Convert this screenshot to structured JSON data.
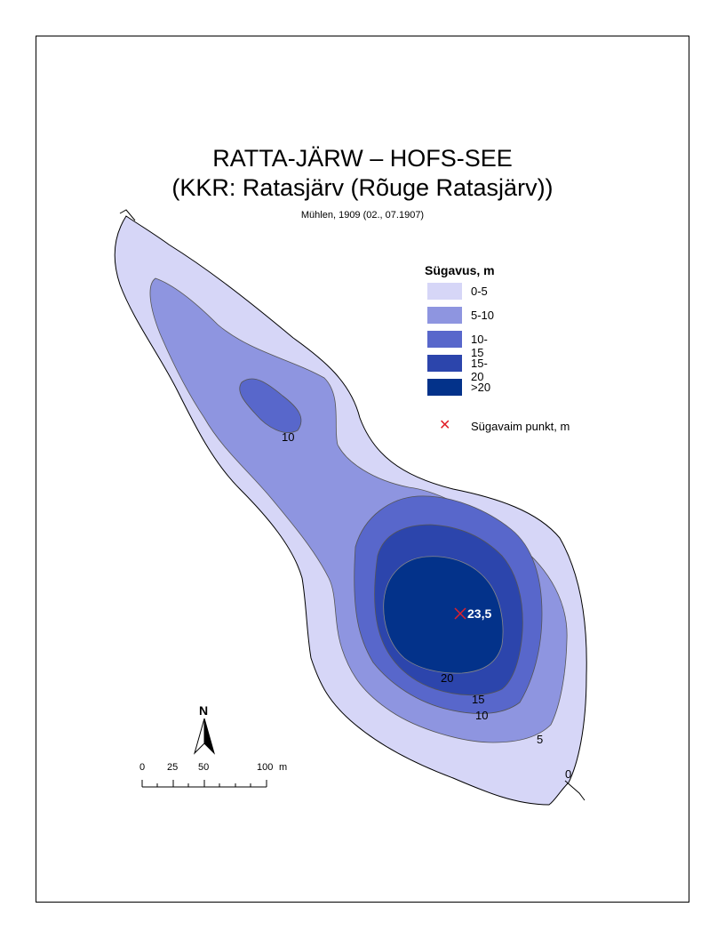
{
  "title": {
    "line1": "RATTA-JÄRW – HOFS-SEE",
    "line2": "(KKR: Ratasjärv (Rõuge Ratasjärv))",
    "source": "Mühlen, 1909 (02., 07.1907)"
  },
  "legend": {
    "title": "Sügavus, m",
    "items": [
      {
        "label": "0-5",
        "color": "#d6d6f7"
      },
      {
        "label": "5-10",
        "color": "#8e95e0"
      },
      {
        "label": "10-15",
        "color": "#5867cb"
      },
      {
        "label": "15-20",
        "color": "#2c45ac"
      },
      {
        "label": ">20",
        "color": "#03328a"
      }
    ],
    "deepest_label": "Sügavaim punkt, m",
    "deepest_color": "#e2202a"
  },
  "contours": {
    "c0": "0",
    "c5": "5",
    "c10_north": "10",
    "c10": "10",
    "c15": "15",
    "c20": "20"
  },
  "deepest_point": {
    "value": "23,5"
  },
  "north": {
    "label": "N"
  },
  "scale": {
    "ticks": [
      "0",
      "25",
      "50",
      "100"
    ],
    "unit": "m"
  }
}
